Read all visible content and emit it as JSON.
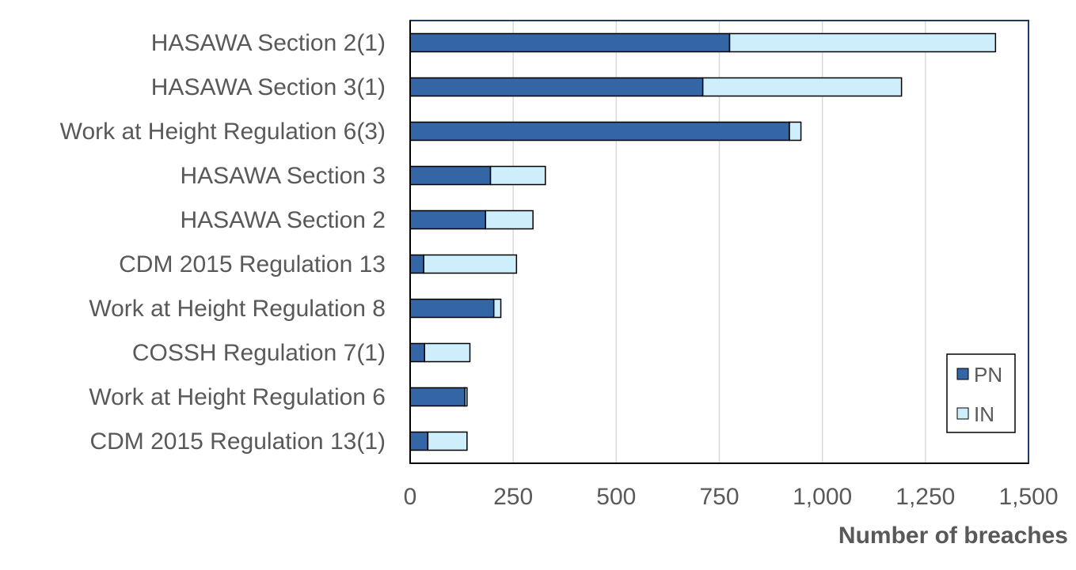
{
  "chart_data": {
    "type": "bar",
    "orientation": "horizontal",
    "stacked": true,
    "categories": [
      "HASAWA Section 2(1)",
      "HASAWA Section 3(1)",
      "Work at Height Regulation 6(3)",
      "HASAWA Section 3",
      "HASAWA Section 2",
      "CDM 2015 Regulation 13",
      "Work at Height Regulation 8",
      "COSSH Regulation 7(1)",
      "Work at Height Regulation 6",
      "CDM 2015 Regulation 13(1)"
    ],
    "series": [
      {
        "name": "PN",
        "color": "#3465a4",
        "values": [
          775,
          710,
          920,
          195,
          183,
          33,
          203,
          35,
          133,
          43
        ]
      },
      {
        "name": "IN",
        "color": "#cdeefa",
        "values": [
          645,
          482,
          28,
          133,
          115,
          225,
          17,
          110,
          5,
          95
        ]
      }
    ],
    "xlabel": "Number of breaches",
    "ylabel": "",
    "xlim": [
      0,
      1500
    ],
    "xticks": [
      0,
      250,
      500,
      750,
      1000,
      1250,
      1500
    ],
    "xtick_labels": [
      "0",
      "250",
      "500",
      "750",
      "1,000",
      "1,250",
      "1,500"
    ],
    "grid": "vertical",
    "legend": {
      "position": "bottom-right",
      "items": [
        "PN",
        "IN"
      ]
    },
    "colors": {
      "grid": "#d9d9d9",
      "plot_border": "#1f3864",
      "axis_line": "#000000",
      "bar_outline": "#000000",
      "text": "#595959"
    }
  }
}
